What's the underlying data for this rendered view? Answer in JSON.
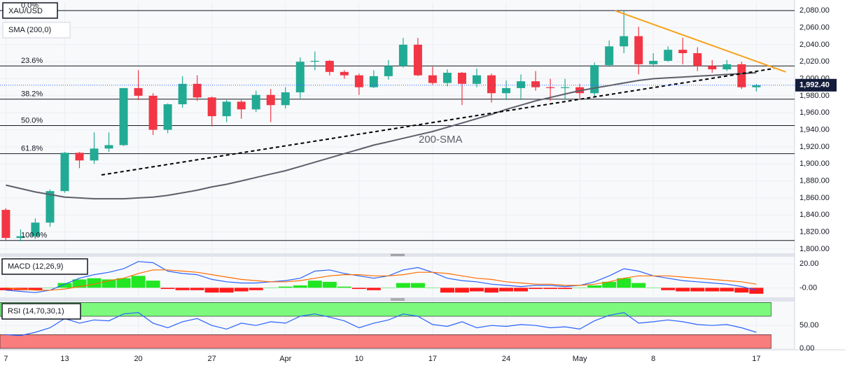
{
  "chart_data": [
    {
      "type": "candlestick",
      "title": "XAU/USD",
      "indicator": "SMA (200,0)",
      "x": [
        0,
        1,
        2,
        3,
        4,
        5,
        6,
        7,
        8,
        9,
        10,
        11,
        12,
        13,
        14,
        15,
        16,
        17,
        18,
        19,
        20,
        21,
        22,
        23,
        24,
        25,
        26,
        27,
        28,
        29,
        30,
        31,
        32,
        33,
        34,
        35,
        36,
        37,
        38,
        39,
        40,
        41,
        42,
        43,
        44,
        45,
        46,
        47,
        48,
        49,
        50,
        51
      ],
      "open": [
        1846,
        1813,
        1815,
        1831,
        1868,
        1913,
        1904,
        1918,
        1922,
        1989,
        1980,
        1940,
        1970,
        1994,
        1978,
        1956,
        1973,
        1964,
        1981,
        1969,
        1984,
        2020,
        2021,
        2008,
        2004,
        1990,
        2003,
        2015,
        2040,
        2004,
        1995,
        2007,
        1994,
        2004,
        1983,
        1989,
        1997,
        1990,
        1989,
        1990,
        1983,
        2016,
        2038,
        2050,
        2017,
        2021,
        2034,
        2030,
        2015,
        2011,
        2017,
        1990
      ],
      "high": [
        1848,
        1823,
        1836,
        1870,
        1914,
        1914,
        1937,
        1937,
        1989,
        2010,
        1983,
        1971,
        2003,
        2004,
        1979,
        1975,
        1975,
        1986,
        1988,
        1990,
        2025,
        2032,
        2022,
        2010,
        2006,
        2010,
        2022,
        2048,
        2048,
        2014,
        2011,
        2008,
        2012,
        2006,
        1998,
        2005,
        2009,
        2000,
        2000,
        1994,
        2019,
        2045,
        2080,
        2061,
        2030,
        2038,
        2048,
        2037,
        2022,
        2022,
        2020,
        1994
      ],
      "low": [
        1810,
        1809,
        1812,
        1826,
        1866,
        1895,
        1900,
        1914,
        1921,
        1975,
        1934,
        1936,
        1966,
        1974,
        1944,
        1949,
        1953,
        1961,
        1949,
        1965,
        1977,
        2010,
        2004,
        2000,
        1981,
        1989,
        1999,
        2013,
        2003,
        1993,
        1991,
        1969,
        1990,
        1972,
        1975,
        1975,
        1986,
        1974,
        1975,
        1977,
        1978,
        2014,
        2030,
        2005,
        2014,
        2020,
        2017,
        2009,
        2007,
        2009,
        1988,
        1985
      ],
      "close": [
        1813,
        1815,
        1831,
        1868,
        1913,
        1904,
        1918,
        1922,
        1989,
        1980,
        1940,
        1970,
        1994,
        1978,
        1956,
        1973,
        1964,
        1981,
        1969,
        1984,
        2020,
        2021,
        2008,
        2004,
        1990,
        2003,
        2015,
        2040,
        2004,
        1995,
        2007,
        1994,
        2004,
        1983,
        1989,
        1997,
        1990,
        1989,
        1990,
        1983,
        2016,
        2038,
        2050,
        2017,
        2021,
        2034,
        2030,
        2015,
        2011,
        2017,
        1990,
        1992.4
      ],
      "up_color": "#22ab94",
      "down_color": "#f23645",
      "sma": {
        "name": "200-SMA",
        "color": "#5d606b",
        "values": [
          1875,
          1871,
          1867,
          1864,
          1861,
          1860,
          1859,
          1859,
          1859,
          1860,
          1861,
          1863,
          1866,
          1869,
          1873,
          1876,
          1880,
          1884,
          1888,
          1892,
          1897,
          1902,
          1907,
          1912,
          1917,
          1922,
          1926,
          1930,
          1934,
          1938,
          1943,
          1948,
          1953,
          1958,
          1964,
          1969,
          1974,
          1978,
          1982,
          1986,
          1989,
          1992,
          1995,
          1998,
          2000,
          2001,
          2002,
          2003,
          2004,
          2005,
          2006,
          2007
        ]
      },
      "fib_levels": [
        {
          "label": "0.0%",
          "value": 2080
        },
        {
          "label": "23.6%",
          "value": 2015
        },
        {
          "label": "38.2%",
          "value": 1976
        },
        {
          "label": "50.0%",
          "value": 1945
        },
        {
          "label": "61.8%",
          "value": 1912
        },
        {
          "label": "100.0%",
          "value": 1810
        }
      ],
      "trendlines": [
        {
          "x": [
            6.5,
            52.2
          ],
          "y": [
            1887,
            2012
          ],
          "color": "#000000",
          "dashed": true
        },
        {
          "x": [
            41.4,
            53
          ],
          "y": [
            2080,
            2008
          ],
          "color": "#f7a21b",
          "dashed": false
        }
      ],
      "last_price": {
        "value": 1992.4,
        "label": "1,992.40"
      },
      "xlim": [
        -0.4,
        53.6
      ],
      "ylim": [
        1795,
        2090
      ],
      "xticks": [
        {
          "value": 0,
          "label": "7"
        },
        {
          "value": 4,
          "label": "13"
        },
        {
          "value": 9,
          "label": "20"
        },
        {
          "value": 14,
          "label": "27"
        },
        {
          "value": 19,
          "label": "Apr"
        },
        {
          "value": 24,
          "label": "10"
        },
        {
          "value": 29,
          "label": "17"
        },
        {
          "value": 34,
          "label": "24"
        },
        {
          "value": 39,
          "label": "May"
        },
        {
          "value": 44,
          "label": "8"
        },
        {
          "value": 51,
          "label": "17"
        }
      ],
      "yticks": [
        {
          "value": 1800,
          "label": "1,800.00"
        },
        {
          "value": 1820,
          "label": "1,820.00"
        },
        {
          "value": 1840,
          "label": "1,840.00"
        },
        {
          "value": 1860,
          "label": "1,860.00"
        },
        {
          "value": 1880,
          "label": "1,880.00"
        },
        {
          "value": 1900,
          "label": "1,900.00"
        },
        {
          "value": 1920,
          "label": "1,920.00"
        },
        {
          "value": 1940,
          "label": "1,940.00"
        },
        {
          "value": 1960,
          "label": "1,960.00"
        },
        {
          "value": 1980,
          "label": "1,980.00"
        },
        {
          "value": 2000,
          "label": "2,000.00"
        },
        {
          "value": 2020,
          "label": "2,020.00"
        },
        {
          "value": 2040,
          "label": "2,040.00"
        },
        {
          "value": 2060,
          "label": "2,060.00"
        },
        {
          "value": 2080,
          "label": "2,080.00"
        }
      ],
      "grid": true
    },
    {
      "type": "macd",
      "title": "MACD (12,26,9)",
      "series": [
        {
          "color": "#2962ff",
          "values": [
            -2,
            -3,
            -4,
            -2,
            3,
            8,
            11,
            13,
            16,
            22,
            21,
            14,
            12,
            11,
            7,
            5,
            4,
            4,
            5,
            6,
            8,
            14,
            15,
            12,
            10,
            8,
            10,
            15,
            17,
            13,
            8,
            6,
            5,
            3,
            2,
            1,
            2,
            2,
            1,
            2,
            5,
            10,
            16,
            14,
            10,
            8,
            6,
            5,
            4,
            3,
            1,
            -2
          ]
        },
        {
          "color": "#ff6d00",
          "values": [
            0,
            -1,
            -2,
            -2,
            -1,
            1,
            3,
            6,
            8,
            12,
            15,
            15,
            14,
            13,
            11,
            9,
            7,
            6,
            5,
            5,
            6,
            8,
            10,
            11,
            11,
            10,
            10,
            11,
            13,
            13,
            12,
            10,
            8,
            7,
            5,
            4,
            3,
            3,
            2,
            2,
            3,
            5,
            8,
            10,
            10,
            10,
            9,
            8,
            7,
            6,
            5,
            3
          ]
        }
      ],
      "histogram": [
        -2,
        -2,
        -2,
        0,
        4,
        7,
        8,
        7,
        8,
        10,
        6,
        -1,
        -2,
        -2,
        -4,
        -4,
        -3,
        -2,
        0,
        1,
        2,
        6,
        5,
        1,
        -1,
        -2,
        0,
        4,
        4,
        0,
        -4,
        -4,
        -3,
        -4,
        -3,
        -3,
        -1,
        -1,
        -1,
        0,
        2,
        5,
        8,
        4,
        0,
        -2,
        -3,
        -3,
        -3,
        -3,
        -4,
        -5
      ],
      "up_color": "#22e622",
      "down_color": "#ff1a1a",
      "ylim": [
        -8,
        26
      ],
      "yticks": [
        {
          "value": 0,
          "label": "-0.00"
        },
        {
          "value": 20,
          "label": "20.00"
        }
      ]
    },
    {
      "type": "rsi",
      "title": "RSI (14,70,30,1)",
      "values": [
        30,
        28,
        35,
        45,
        65,
        55,
        62,
        60,
        75,
        78,
        55,
        45,
        58,
        65,
        50,
        42,
        55,
        50,
        58,
        55,
        70,
        75,
        68,
        60,
        45,
        55,
        62,
        75,
        70,
        52,
        48,
        58,
        45,
        50,
        48,
        52,
        50,
        45,
        47,
        42,
        60,
        72,
        78,
        55,
        58,
        62,
        58,
        52,
        50,
        52,
        45,
        35
      ],
      "color": "#2962ff",
      "bands": [
        {
          "from": 70,
          "to": 100,
          "color": "#7dfa7d"
        },
        {
          "from": 0,
          "to": 30,
          "color": "#fa7d7d"
        }
      ],
      "ylim": [
        -3,
        102
      ],
      "yticks": [
        {
          "value": 0,
          "label": "0.00"
        },
        {
          "value": 50,
          "label": "50.00"
        }
      ]
    }
  ]
}
